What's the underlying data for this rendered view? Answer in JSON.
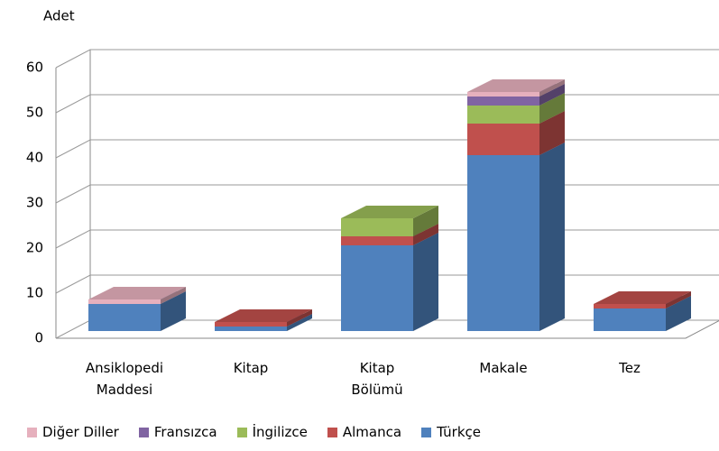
{
  "chart_data": {
    "type": "bar3d_stacked",
    "y_label": "Adet",
    "categories": [
      "Ansiklopedi Maddesi",
      "Kitap",
      "Kitap Bölümü",
      "Makale",
      "Tez"
    ],
    "series": [
      {
        "name": "Türkçe",
        "color": "#4f81bd",
        "values": [
          6,
          1,
          19,
          39,
          5
        ]
      },
      {
        "name": "Almanca",
        "color": "#c0504d",
        "values": [
          0,
          1,
          2,
          7,
          1
        ]
      },
      {
        "name": "İngilizce",
        "color": "#9bbb59",
        "values": [
          0,
          0,
          4,
          4,
          0
        ]
      },
      {
        "name": "Fransızca",
        "color": "#8064a2",
        "values": [
          0,
          0,
          0,
          2,
          0
        ]
      },
      {
        "name": "Diğer Diller",
        "color": "#e6b0bd",
        "values": [
          1,
          0,
          0,
          1,
          0
        ]
      }
    ],
    "ylim": [
      0,
      60
    ],
    "yticks": [
      0,
      10,
      20,
      30,
      40,
      50,
      60
    ],
    "grid": true,
    "legend": "bottom"
  }
}
